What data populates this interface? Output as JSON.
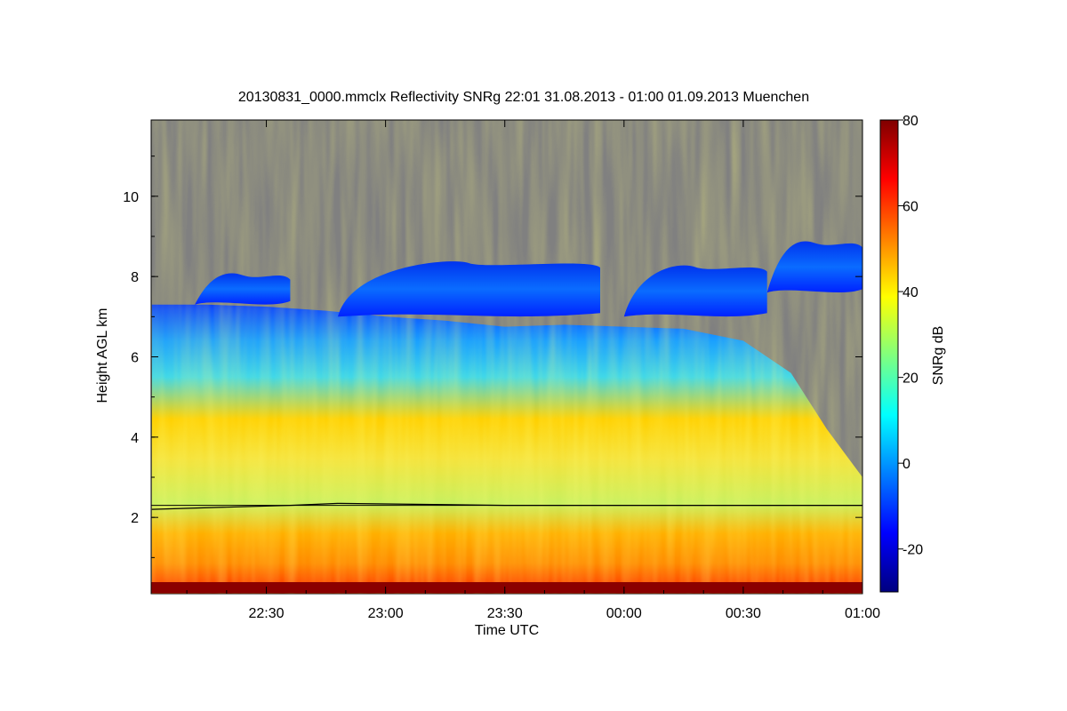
{
  "chart_data": {
    "type": "heatmap",
    "title": "20130831_0000.mmclx Reflectivity SNRg   22:01 31.08.2013 - 01:00 01.09.2013 Muenchen",
    "xlabel": "Time UTC",
    "ylabel": "Height AGL km",
    "x_range_hours": [
      22.017,
      25.0
    ],
    "x_ticks": [
      {
        "value": 22.5,
        "label": "22:30"
      },
      {
        "value": 23.0,
        "label": "23:00"
      },
      {
        "value": 23.5,
        "label": "23:30"
      },
      {
        "value": 24.0,
        "label": "00:00"
      },
      {
        "value": 24.5,
        "label": "00:30"
      },
      {
        "value": 25.0,
        "label": "01:00"
      }
    ],
    "ylim": [
      0.1,
      11.9
    ],
    "y_ticks": [
      {
        "value": 2,
        "label": "2"
      },
      {
        "value": 4,
        "label": "4"
      },
      {
        "value": 6,
        "label": "6"
      },
      {
        "value": 8,
        "label": "8"
      },
      {
        "value": 10,
        "label": "10"
      }
    ],
    "colorbar": {
      "label": "SNRg dB",
      "range": [
        -30,
        80
      ],
      "ticks": [
        {
          "value": -20,
          "label": "-20"
        },
        {
          "value": 0,
          "label": "0"
        },
        {
          "value": 20,
          "label": "20"
        },
        {
          "value": 40,
          "label": "40"
        },
        {
          "value": 60,
          "label": "60"
        },
        {
          "value": 80,
          "label": "80"
        }
      ],
      "colors": [
        "#00007f",
        "#0000ff",
        "#007fff",
        "#00ffff",
        "#7fff7f",
        "#ffff00",
        "#ff7f00",
        "#ff0000",
        "#7f0000"
      ]
    },
    "no_signal_color": "#808080",
    "cloud_top_km": [
      {
        "t": 22.02,
        "h": 7.3
      },
      {
        "t": 22.25,
        "h": 7.3
      },
      {
        "t": 22.5,
        "h": 7.25
      },
      {
        "t": 22.75,
        "h": 7.15
      },
      {
        "t": 23.0,
        "h": 7.0
      },
      {
        "t": 23.25,
        "h": 6.9
      },
      {
        "t": 23.5,
        "h": 6.75
      },
      {
        "t": 23.75,
        "h": 6.8
      },
      {
        "t": 24.0,
        "h": 6.75
      },
      {
        "t": 24.25,
        "h": 6.7
      },
      {
        "t": 24.5,
        "h": 6.4
      },
      {
        "t": 24.7,
        "h": 5.6
      },
      {
        "t": 24.85,
        "h": 4.2
      },
      {
        "t": 25.0,
        "h": 3.0
      }
    ],
    "upper_layer_km": [
      {
        "t_start": 22.2,
        "t_end": 22.6,
        "bottom": 7.3,
        "top": 8.1
      },
      {
        "t_start": 22.8,
        "t_end": 23.9,
        "bottom": 7.0,
        "top": 8.4
      },
      {
        "t_start": 24.0,
        "t_end": 24.6,
        "bottom": 7.0,
        "top": 8.3
      },
      {
        "t_start": 24.6,
        "t_end": 25.0,
        "bottom": 7.6,
        "top": 8.9
      }
    ],
    "melting_layer_km": [
      {
        "t": 22.02,
        "h": 2.2
      },
      {
        "t": 22.3,
        "h": 2.25
      },
      {
        "t": 22.6,
        "h": 2.3
      },
      {
        "t": 22.8,
        "h": 2.35
      },
      {
        "t": 23.5,
        "h": 2.3
      },
      {
        "t": 24.0,
        "h": 2.3
      },
      {
        "t": 24.3,
        "h": 2.3
      },
      {
        "t": 24.5,
        "h": 2.3
      },
      {
        "t": 25.0,
        "h": 2.3
      }
    ]
  }
}
